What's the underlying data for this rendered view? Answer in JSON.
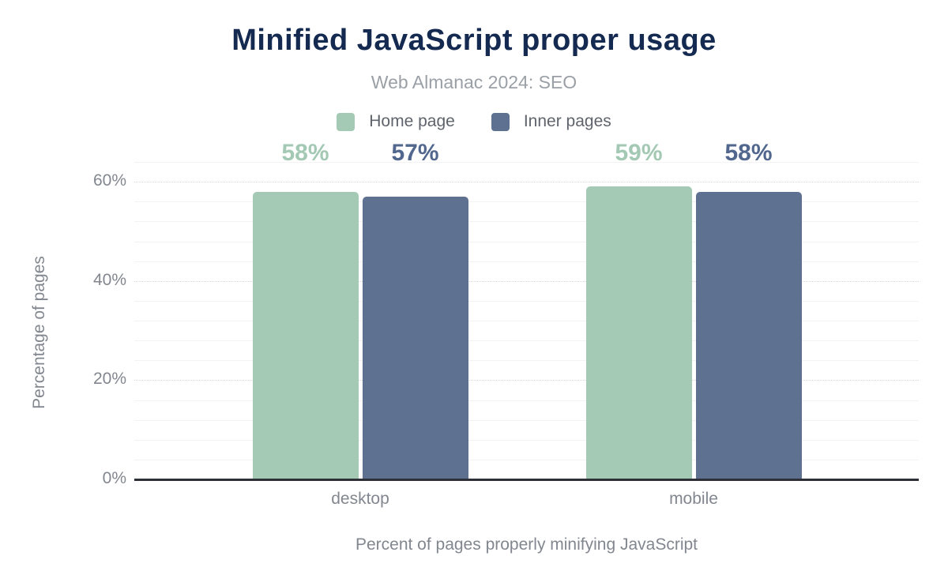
{
  "header": {
    "title": "Minified JavaScript proper usage",
    "subtitle": "Web Almanac 2024: SEO"
  },
  "chart_data": {
    "type": "bar",
    "categories": [
      "desktop",
      "mobile"
    ],
    "series": [
      {
        "name": "Home page",
        "color": "#a4c9b4",
        "label_color": "#a3c9b4",
        "values": [
          58,
          59
        ]
      },
      {
        "name": "Inner pages",
        "color": "#5e7190",
        "label_color": "#52678e",
        "values": [
          57,
          58
        ]
      }
    ],
    "value_suffix": "%",
    "data_labels": [
      [
        "58%",
        "59%"
      ],
      [
        "57%",
        "58%"
      ]
    ],
    "title": "Minified JavaScript proper usage",
    "subtitle": "Web Almanac 2024: SEO",
    "ylabel": "Percentage of pages",
    "xlabel": "Percent of pages properly minifying JavaScript",
    "ylim": [
      0,
      64
    ],
    "ytick_values": [
      0,
      20,
      40,
      60
    ],
    "ytick_labels": [
      "0%",
      "20%",
      "40%",
      "60%"
    ],
    "minor_grid_step": 4,
    "grid": true,
    "legend_position": "top"
  },
  "colors": {
    "title": "#152a50",
    "subtitle": "#9aa0a6",
    "axis_text": "#82878f",
    "axis_line": "#2d3137",
    "minor_grid": "#f3f3f3",
    "major_grid": "#d8d8d8"
  }
}
